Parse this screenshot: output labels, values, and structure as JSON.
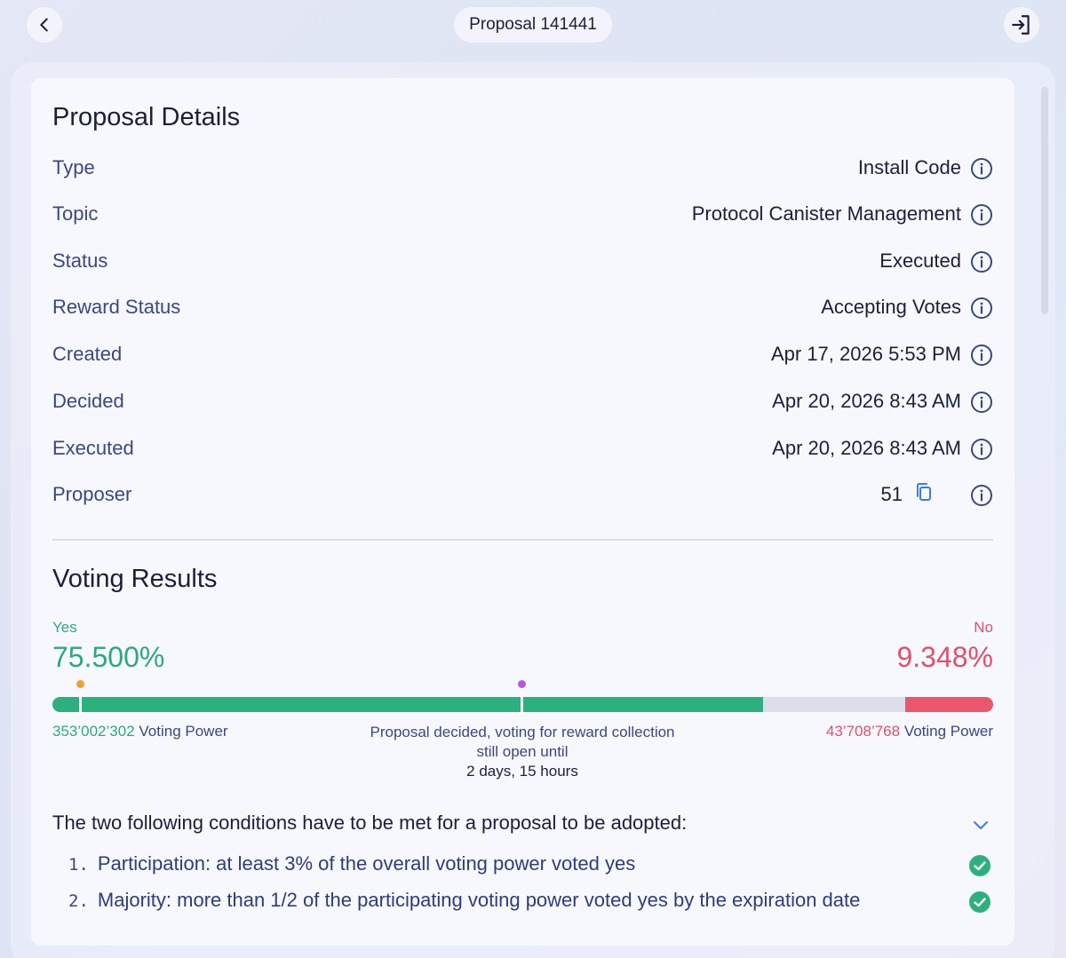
{
  "header": {
    "title": "Proposal 141441",
    "back_icon": "chevron-left-icon",
    "logout_icon": "logout-icon"
  },
  "details": {
    "heading": "Proposal Details",
    "rows": [
      {
        "label": "Type",
        "value": "Install Code"
      },
      {
        "label": "Topic",
        "value": "Protocol Canister Management"
      },
      {
        "label": "Status",
        "value": "Executed"
      },
      {
        "label": "Reward Status",
        "value": "Accepting Votes"
      },
      {
        "label": "Created",
        "value": "Apr 17, 2026 5:53 PM"
      },
      {
        "label": "Decided",
        "value": "Apr 20, 2026 8:43 AM"
      },
      {
        "label": "Executed",
        "value": "Apr 20, 2026 8:43 AM"
      },
      {
        "label": "Proposer",
        "value": "51"
      }
    ]
  },
  "voting": {
    "heading": "Voting Results",
    "yes_label": "Yes",
    "no_label": "No",
    "yes_percent": "75.500%",
    "no_percent": "9.348%",
    "yes_fraction": 0.755,
    "no_fraction": 0.09348,
    "yes_power": "353’002’302",
    "no_power": "43’708’768",
    "power_suffix": " Voting Power",
    "decided_text": "Proposal decided, voting for reward collection still open until",
    "decided_time": "2 days, 15 hours",
    "colors": {
      "yes": "#2eb07e",
      "no": "#ea566c",
      "threshold_min": "#f0a030",
      "threshold_majority": "#b85ad8"
    }
  },
  "conditions": {
    "heading": "The two following conditions have to be met for a proposal to be adopted:",
    "items": [
      {
        "num": "1.",
        "text": "Participation: at least 3% of the overall voting power voted yes"
      },
      {
        "num": "2.",
        "text": "Majority: more than 1/2 of the participating voting power voted yes by the expiration date"
      }
    ]
  }
}
